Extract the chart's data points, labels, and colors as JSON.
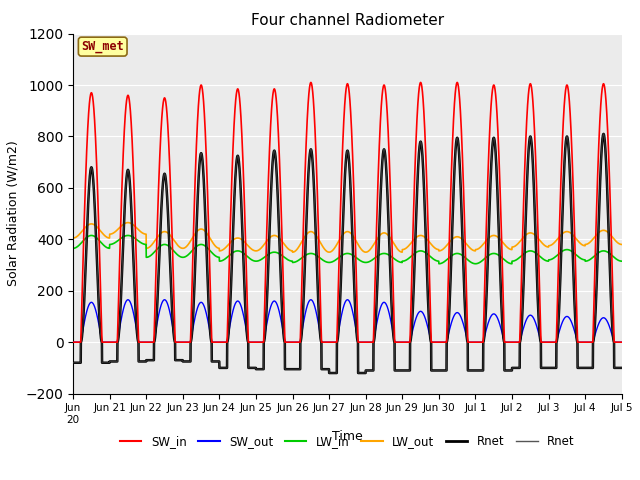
{
  "title": "Four channel Radiometer",
  "xlabel": "Time",
  "ylabel": "Solar Radiation (W/m2)",
  "ylim": [
    -200,
    1200
  ],
  "yticks": [
    -200,
    0,
    200,
    400,
    600,
    800,
    1000,
    1200
  ],
  "annotation_text": "SW_met",
  "annotation_color": "#8B0000",
  "annotation_bg": "#FFFFA0",
  "bg_color": "#EBEBEB",
  "n_days": 15,
  "colors": {
    "SW_in": "#FF0000",
    "SW_out": "#0000FF",
    "LW_in": "#00CC00",
    "LW_out": "#FFA500",
    "Rnet_thick": "#000000",
    "Rnet_thin": "#555555"
  },
  "SW_in_peaks": [
    970,
    960,
    950,
    1000,
    985,
    985,
    1010,
    1005,
    1000,
    1010,
    1010,
    1000,
    1005,
    1000,
    1005
  ],
  "SW_out_peaks": [
    155,
    165,
    165,
    155,
    160,
    160,
    165,
    165,
    155,
    120,
    115,
    110,
    105,
    100,
    95
  ],
  "LW_in_base": [
    365,
    380,
    330,
    330,
    315,
    315,
    310,
    310,
    310,
    315,
    305,
    305,
    315,
    320,
    315
  ],
  "LW_in_peak": [
    415,
    415,
    380,
    380,
    355,
    350,
    345,
    345,
    345,
    355,
    345,
    345,
    355,
    360,
    355
  ],
  "LW_out_base": [
    405,
    420,
    365,
    365,
    355,
    355,
    350,
    350,
    350,
    360,
    355,
    360,
    370,
    375,
    380
  ],
  "LW_out_peak": [
    460,
    465,
    430,
    440,
    405,
    415,
    430,
    430,
    425,
    415,
    410,
    415,
    425,
    430,
    435
  ],
  "Rnet_peaks": [
    680,
    670,
    655,
    735,
    725,
    745,
    750,
    745,
    750,
    780,
    795,
    795,
    800,
    800,
    810
  ],
  "Rnet_min": [
    -80,
    -75,
    -70,
    -75,
    -100,
    -105,
    -105,
    -120,
    -110,
    -110,
    -110,
    -110,
    -100,
    -100,
    -100
  ],
  "figsize": [
    6.4,
    4.8
  ],
  "dpi": 100
}
